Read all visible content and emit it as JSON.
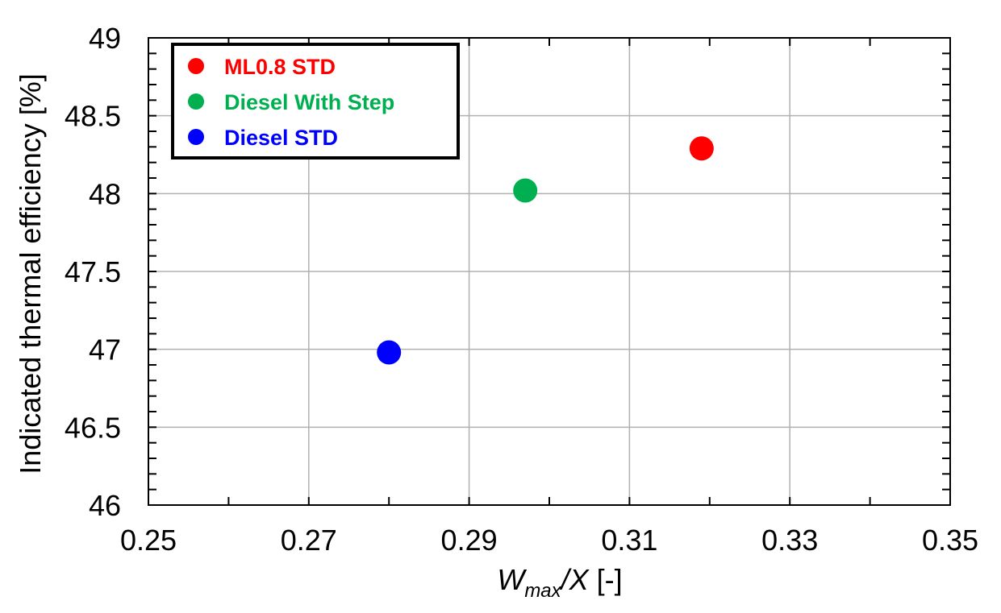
{
  "chart_data": {
    "type": "scatter",
    "xlabel": {
      "main": "W",
      "sub": "max",
      "rest": "/X",
      "unit": "[-]"
    },
    "ylabel": "Indicated thermal efficiency [%]",
    "xlim": [
      0.25,
      0.35
    ],
    "ylim": [
      46,
      49
    ],
    "x_ticks": [
      0.25,
      0.27,
      0.29,
      0.31,
      0.33,
      0.35
    ],
    "x_tick_labels": [
      "0.25",
      "0.27",
      "0.29",
      "0.31",
      "0.33",
      "0.35"
    ],
    "y_ticks": [
      46,
      46.5,
      47,
      47.5,
      48,
      48.5,
      49
    ],
    "y_tick_labels": [
      "46",
      "46.5",
      "47",
      "47.5",
      "48",
      "48.5",
      "49"
    ],
    "grid": true,
    "legend_position": "top-left",
    "series": [
      {
        "name": "ML0.8 STD",
        "color": "#ff0000",
        "points": [
          {
            "x": 0.319,
            "y": 48.29
          }
        ]
      },
      {
        "name": "Diesel With Step",
        "color": "#00b050",
        "points": [
          {
            "x": 0.297,
            "y": 48.02
          }
        ]
      },
      {
        "name": "Diesel STD",
        "color": "#0000ff",
        "points": [
          {
            "x": 0.28,
            "y": 46.98
          }
        ]
      }
    ]
  }
}
